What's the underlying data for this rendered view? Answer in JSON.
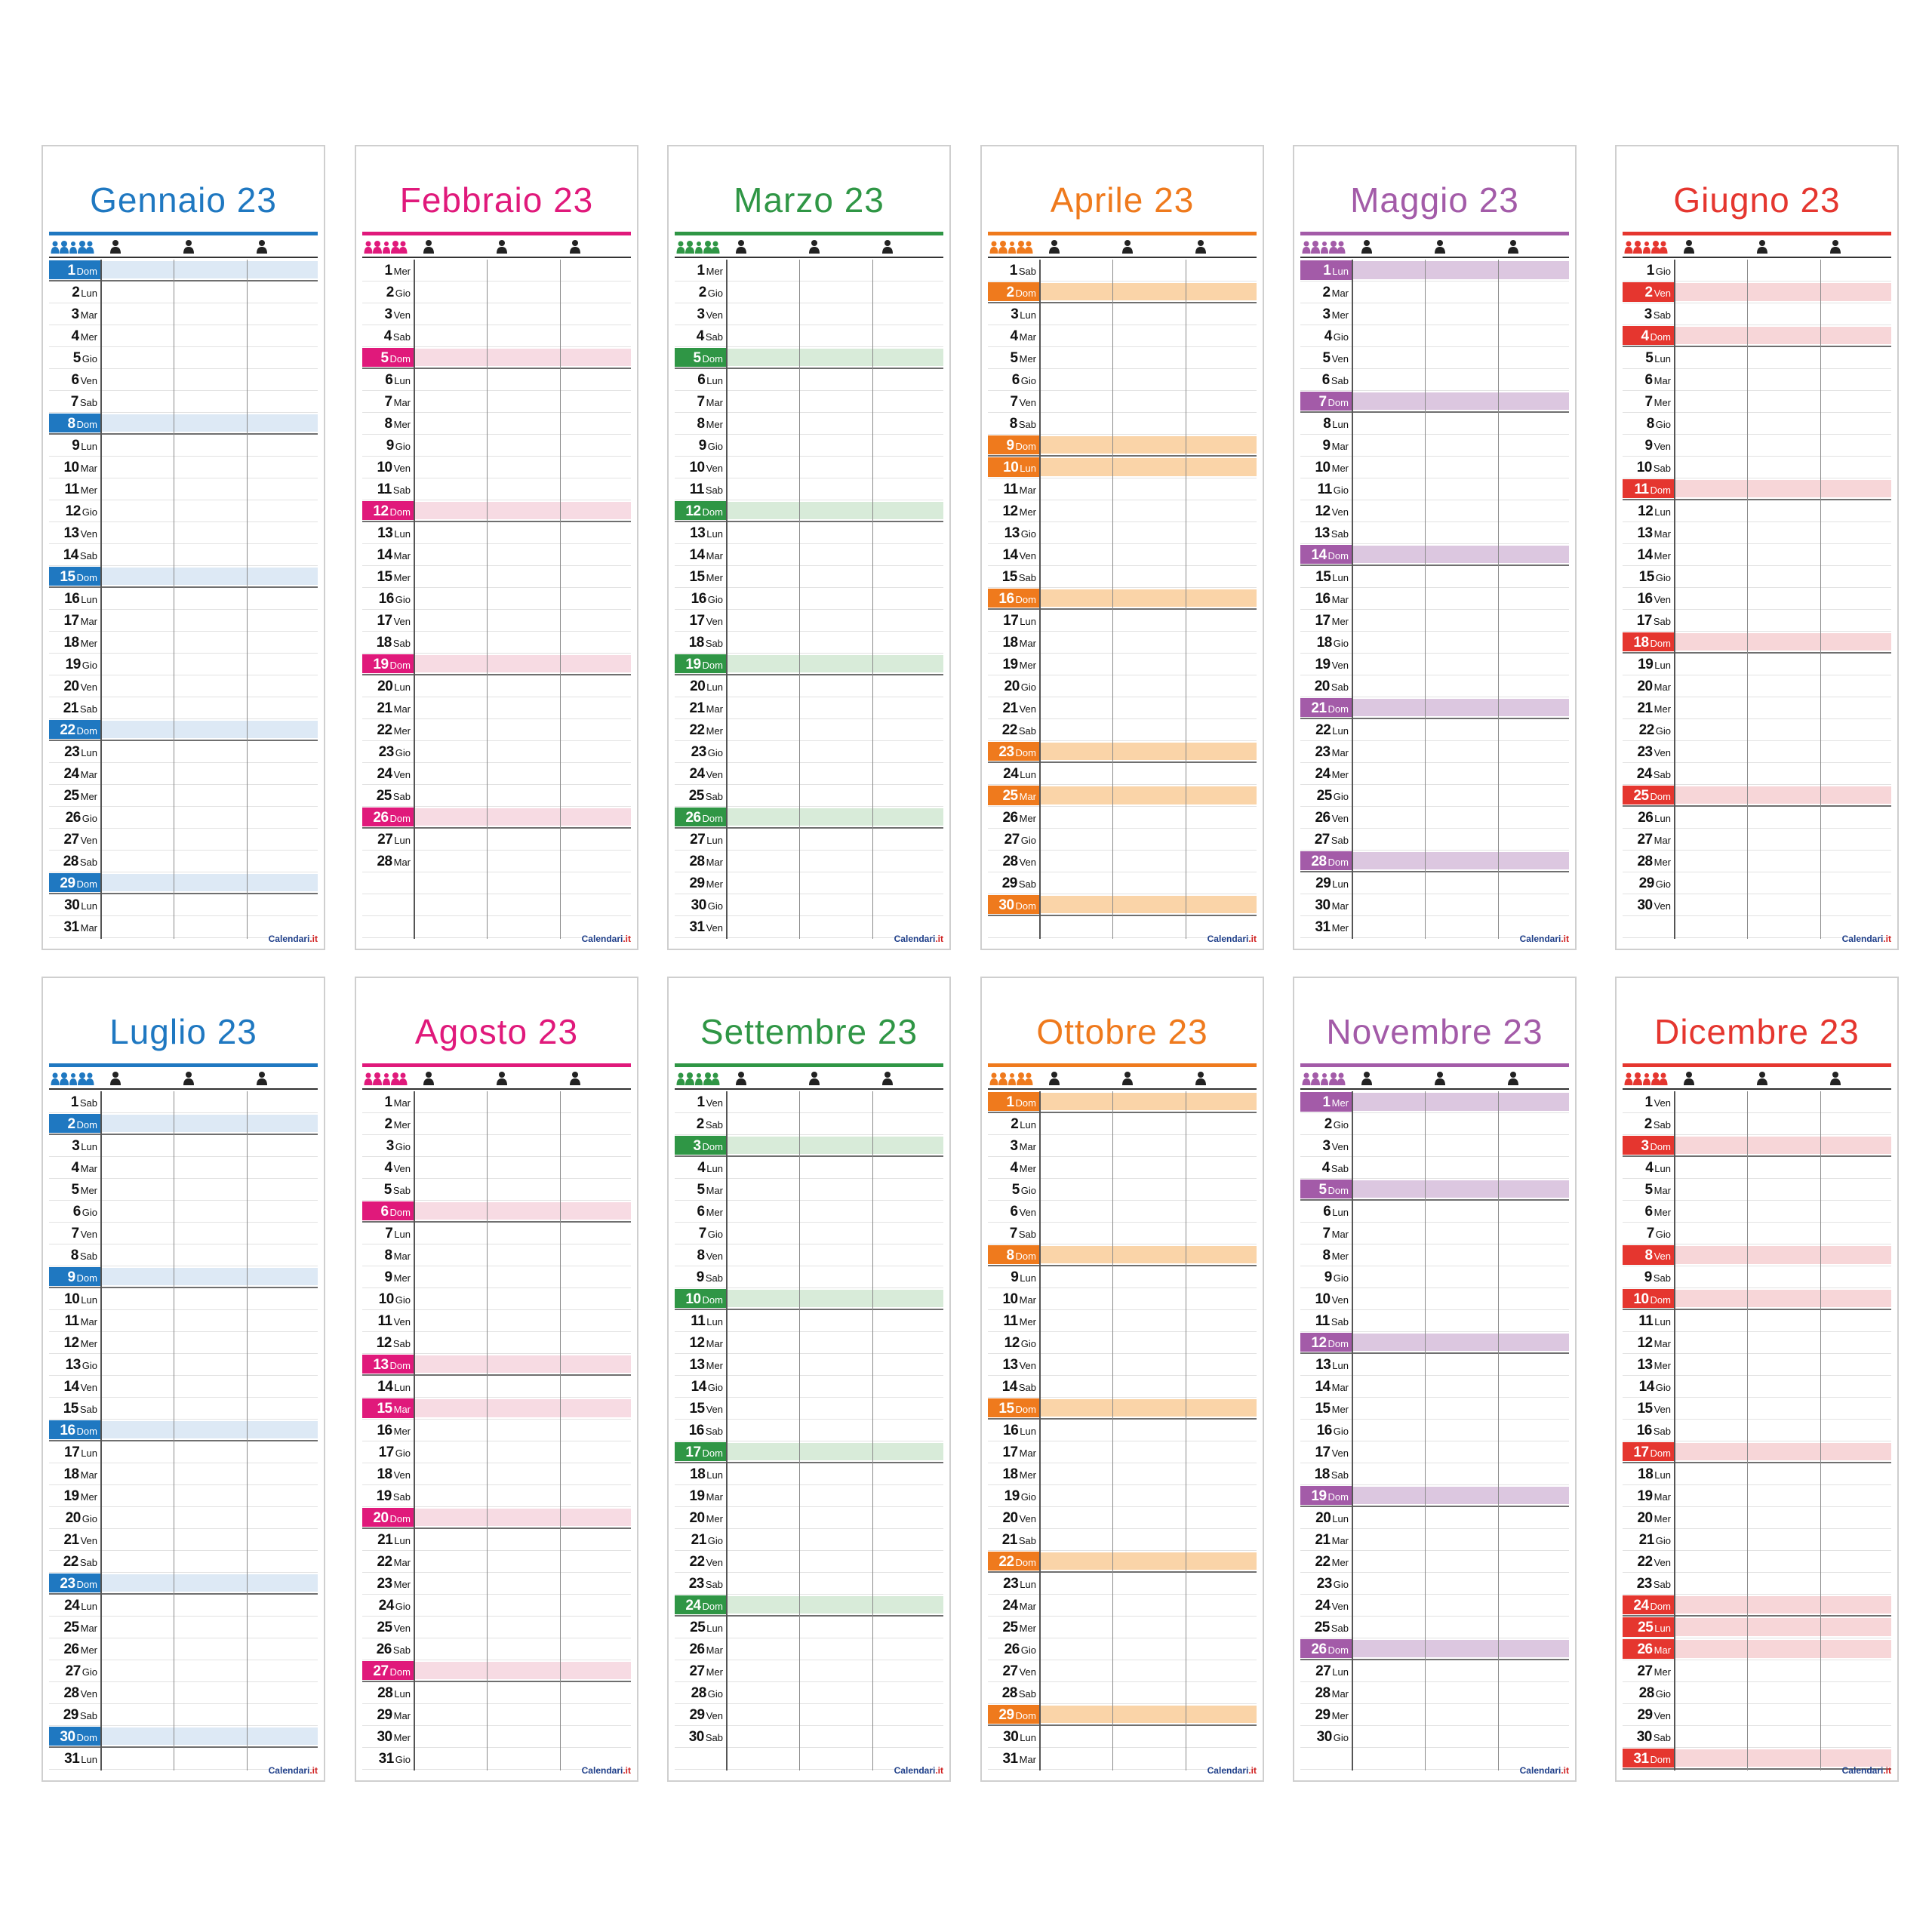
{
  "brand": {
    "main": "Calendari",
    "suffix": ".it"
  },
  "months": [
    {
      "title": "Gennaio 23",
      "color": "#1f78c1",
      "light": "#dde9f5",
      "days": 31,
      "startDow": 6
    },
    {
      "title": "Febbraio 23",
      "color": "#e0197b",
      "light": "#f7dbe3",
      "days": 28,
      "startDow": 2
    },
    {
      "title": "Marzo 23",
      "color": "#2f9645",
      "light": "#d8ebd9",
      "days": 31,
      "startDow": 2
    },
    {
      "title": "Aprile 23",
      "color": "#ef7a1d",
      "light": "#fad4a8",
      "days": 30,
      "startDow": 5,
      "holidays": [
        10,
        25
      ]
    },
    {
      "title": "Maggio 23",
      "color": "#a35ba8",
      "light": "#dcc7e0",
      "days": 31,
      "startDow": 0,
      "holidays": [
        1
      ]
    },
    {
      "title": "Giugno 23",
      "color": "#e5362f",
      "light": "#f7d6d8",
      "days": 30,
      "startDow": 3,
      "holidays": [
        2
      ]
    },
    {
      "title": "Luglio 23",
      "color": "#1f78c1",
      "light": "#dde9f5",
      "days": 31,
      "startDow": 5
    },
    {
      "title": "Agosto 23",
      "color": "#e0197b",
      "light": "#f7dbe3",
      "days": 31,
      "startDow": 1,
      "holidays": [
        15
      ]
    },
    {
      "title": "Settembre 23",
      "color": "#2f9645",
      "light": "#d8ebd9",
      "days": 30,
      "startDow": 4
    },
    {
      "title": "Ottobre 23",
      "color": "#ef7a1d",
      "light": "#fad4a8",
      "days": 31,
      "startDow": 6
    },
    {
      "title": "Novembre 23",
      "color": "#a35ba8",
      "light": "#dcc7e0",
      "days": 30,
      "startDow": 2,
      "holidays": [
        1
      ]
    },
    {
      "title": "Dicembre 23",
      "color": "#e5362f",
      "light": "#f7d6d8",
      "days": 31,
      "startDow": 4,
      "holidays": [
        8,
        25,
        26
      ]
    }
  ],
  "weekdays": [
    "Lun",
    "Mar",
    "Mer",
    "Gio",
    "Ven",
    "Sab",
    "Dom"
  ],
  "header_icons": [
    "family-icon",
    "person-icon",
    "person-icon",
    "person-icon"
  ]
}
